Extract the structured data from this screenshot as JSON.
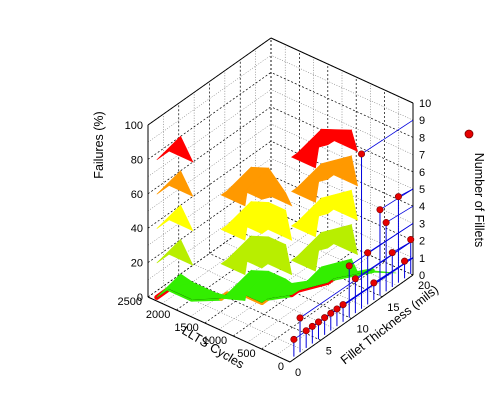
{
  "chart_data": {
    "type": "3d-surface-with-scatter",
    "axes": {
      "x": {
        "label": "LLTS Cycles",
        "range": [
          0,
          2500
        ],
        "ticks": [
          "0",
          "500",
          "1000",
          "1500",
          "2000",
          "2500"
        ]
      },
      "y": {
        "label": "Fillet Thickness (mils)",
        "range": [
          0,
          20
        ],
        "ticks": [
          "0",
          "5",
          "10",
          "15",
          "20"
        ]
      },
      "z_left": {
        "label": "Failures (%)",
        "range": [
          0,
          100
        ],
        "ticks": [
          "0",
          "20",
          "40",
          "60",
          "80",
          "100"
        ]
      },
      "z_right": {
        "label": "Number of Fillets",
        "range": [
          0,
          10
        ],
        "ticks": [
          "0",
          "1",
          "2",
          "3",
          "4",
          "5",
          "6",
          "7",
          "8",
          "9",
          "10"
        ]
      }
    },
    "grid": true,
    "legend": {
      "marker": "red-circle",
      "position": "right",
      "label": ""
    },
    "color_bands": {
      "breaks": [
        0,
        20,
        40,
        60,
        80,
        100
      ],
      "colors": [
        "#33ee00",
        "#b8ee00",
        "#ffff00",
        "#ff9900",
        "#ff0000"
      ]
    },
    "failure_surface": [
      {
        "cycles": 2400,
        "thickness": 0.5,
        "failures": 100
      },
      {
        "cycles": 2400,
        "thickness": 2.5,
        "failures": 10
      },
      {
        "cycles": 2000,
        "thickness": 2.5,
        "failures": 10
      },
      {
        "cycles": 1700,
        "thickness": 4.5,
        "failures": 5
      },
      {
        "cycles": 1700,
        "thickness": 5.5,
        "failures": 80
      },
      {
        "cycles": 1500,
        "thickness": 6.5,
        "failures": 80
      },
      {
        "cycles": 1200,
        "thickness": 6.5,
        "failures": 70
      },
      {
        "cycles": 1200,
        "thickness": 7.5,
        "failures": 15
      },
      {
        "cycles": 1000,
        "thickness": 9.5,
        "failures": 15
      },
      {
        "cycles": 1000,
        "thickness": 10.5,
        "failures": 100
      },
      {
        "cycles": 800,
        "thickness": 13.5,
        "failures": 95
      },
      {
        "cycles": 800,
        "thickness": 14.5,
        "failures": 10
      },
      {
        "cycles": 500,
        "thickness": 18,
        "failures": 5
      }
    ],
    "fillet_counts": [
      {
        "thickness": 1,
        "count": 1
      },
      {
        "thickness": 2,
        "count": 2
      },
      {
        "thickness": 3,
        "count": 1
      },
      {
        "thickness": 4,
        "count": 1
      },
      {
        "thickness": 5,
        "count": 1
      },
      {
        "thickness": 6,
        "count": 1
      },
      {
        "thickness": 7,
        "count": 1
      },
      {
        "thickness": 8,
        "count": 1
      },
      {
        "thickness": 9,
        "count": 1
      },
      {
        "thickness": 10,
        "count": 3
      },
      {
        "thickness": 11,
        "count": 2
      },
      {
        "thickness": 12,
        "count": 9
      },
      {
        "thickness": 13,
        "count": 3
      },
      {
        "thickness": 14,
        "count": 1
      },
      {
        "thickness": 15,
        "count": 5
      },
      {
        "thickness": 16,
        "count": 4
      },
      {
        "thickness": 17,
        "count": 2
      },
      {
        "thickness": 18,
        "count": 5
      },
      {
        "thickness": 19,
        "count": 1
      },
      {
        "thickness": 20,
        "count": 2
      }
    ]
  }
}
